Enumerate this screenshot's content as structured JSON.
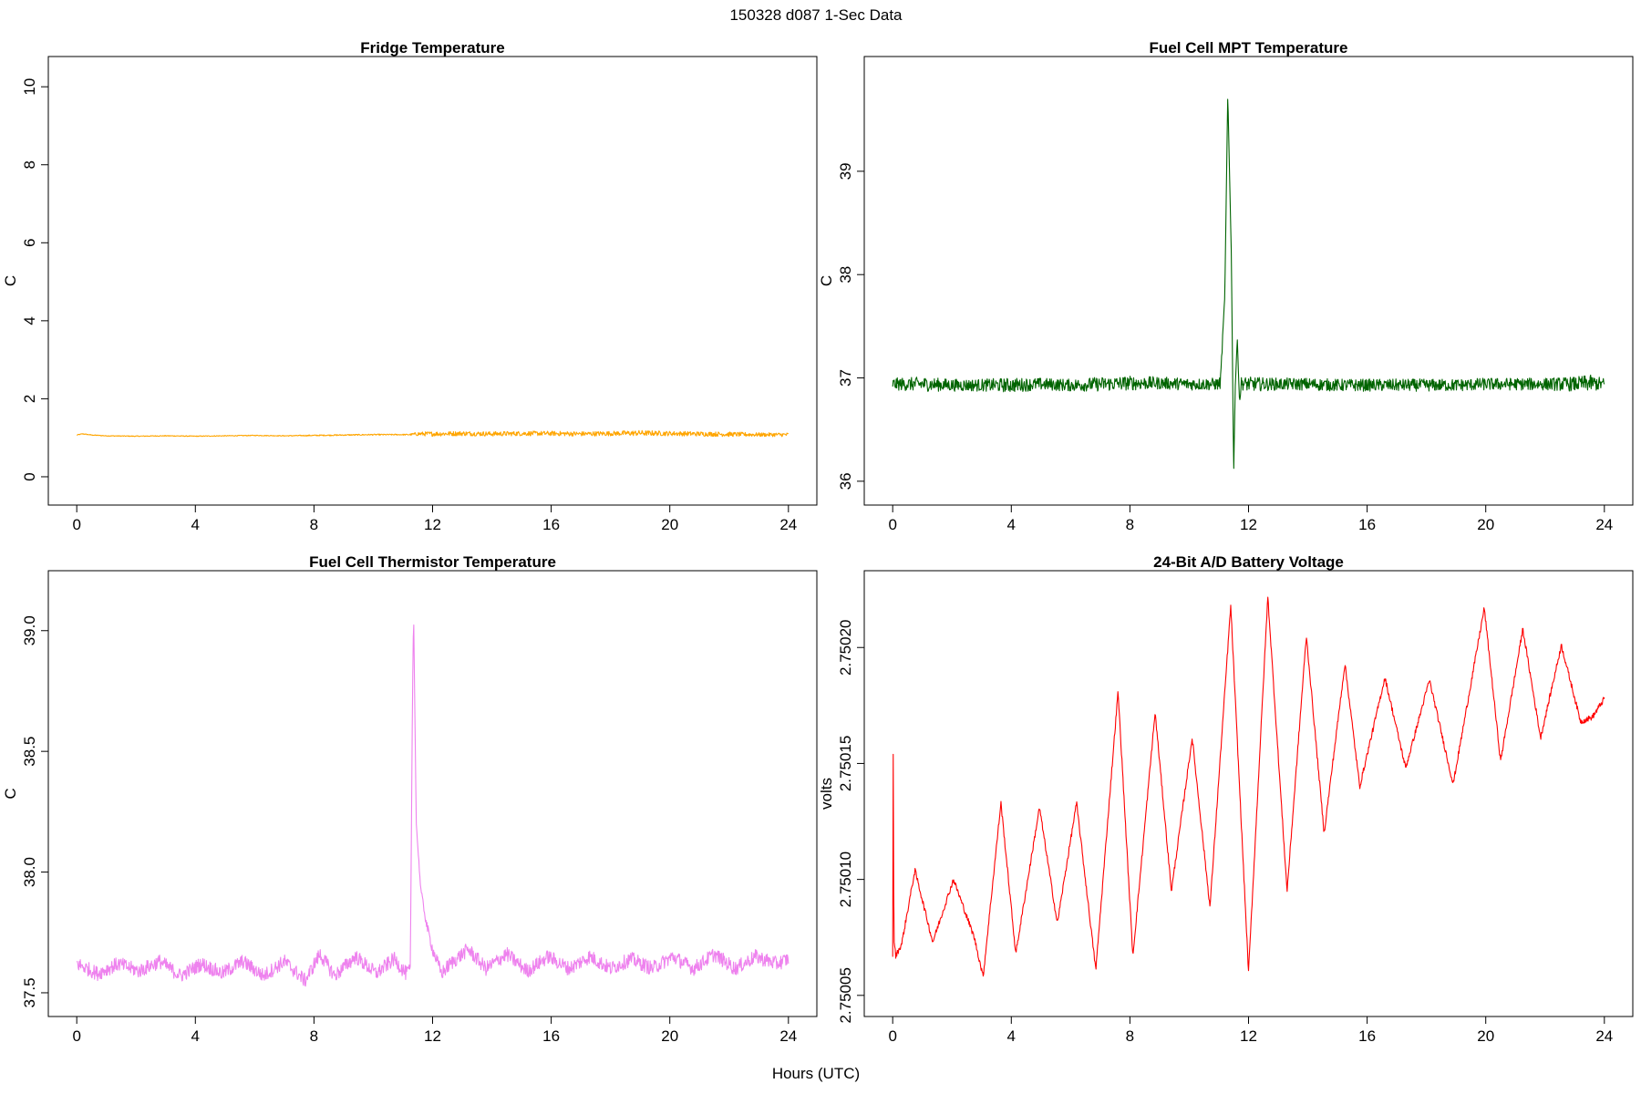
{
  "figure": {
    "title": "150328   d087   1-Sec Data",
    "xlabel": "Hours (UTC)"
  },
  "chart_data": [
    {
      "type": "line",
      "title": "Fridge Temperature",
      "ylabel": "C",
      "xlabel": "",
      "xlim": [
        0,
        24
      ],
      "ylim": [
        -0.3,
        10.35
      ],
      "xticks": [
        0,
        4,
        8,
        12,
        16,
        20,
        24
      ],
      "yticks": [
        0,
        2,
        4,
        6,
        8,
        10
      ],
      "ytick_labels": [
        "0",
        "2",
        "4",
        "6",
        "8",
        "10"
      ],
      "grid": false,
      "color": "#FFA500",
      "series": [
        {
          "x": [
            0,
            0.2,
            0.5,
            1,
            2,
            3,
            4,
            5,
            6,
            7,
            8,
            9,
            10,
            11,
            11.2,
            11.5,
            12,
            13,
            14,
            15,
            16,
            17,
            18,
            19,
            20,
            21,
            22,
            23,
            24
          ],
          "values": [
            1.07,
            1.1,
            1.07,
            1.05,
            1.04,
            1.05,
            1.04,
            1.05,
            1.06,
            1.05,
            1.06,
            1.07,
            1.08,
            1.08,
            1.08,
            1.1,
            1.1,
            1.11,
            1.1,
            1.11,
            1.11,
            1.1,
            1.11,
            1.12,
            1.11,
            1.1,
            1.09,
            1.08,
            1.08
          ],
          "noise": [
            0.01,
            0.01,
            0.01,
            0.01,
            0.01,
            0.01,
            0.01,
            0.01,
            0.01,
            0.01,
            0.015,
            0.015,
            0.015,
            0.015,
            0.015,
            0.05,
            0.06,
            0.06,
            0.06,
            0.06,
            0.06,
            0.06,
            0.06,
            0.07,
            0.06,
            0.06,
            0.06,
            0.05,
            0.05
          ]
        }
      ]
    },
    {
      "type": "line",
      "title": "Fuel Cell MPT Temperature",
      "ylabel": "C",
      "xlabel": "",
      "xlim": [
        0,
        24
      ],
      "ylim": [
        35.93,
        39.95
      ],
      "xticks": [
        0,
        4,
        8,
        12,
        16,
        20,
        24
      ],
      "yticks": [
        36,
        37,
        38,
        39
      ],
      "ytick_labels": [
        "36",
        "37",
        "38",
        "39"
      ],
      "grid": false,
      "color": "#006400",
      "series": [
        {
          "x": [
            0,
            1,
            2,
            3,
            4,
            5,
            6,
            7,
            8,
            9,
            10,
            11,
            11.05,
            11.2,
            11.3,
            11.42,
            11.5,
            11.55,
            11.62,
            11.7,
            11.75,
            11.9,
            12,
            13,
            14,
            15,
            16,
            17,
            18,
            19,
            20,
            21,
            22,
            23,
            23.5,
            24
          ],
          "values": [
            36.94,
            36.94,
            36.93,
            36.93,
            36.93,
            36.94,
            36.93,
            36.94,
            36.95,
            36.95,
            36.94,
            36.94,
            36.95,
            37.8,
            39.75,
            38.2,
            36.08,
            36.9,
            37.38,
            36.75,
            36.95,
            36.94,
            36.94,
            36.94,
            36.94,
            36.93,
            36.93,
            36.93,
            36.93,
            36.93,
            36.94,
            36.94,
            36.94,
            36.94,
            36.95,
            36.94
          ],
          "noise": [
            0.06,
            0.07,
            0.06,
            0.06,
            0.07,
            0.06,
            0.06,
            0.07,
            0.07,
            0.06,
            0.06,
            0.06,
            0.06,
            0.01,
            0.01,
            0.01,
            0.01,
            0.02,
            0.01,
            0.02,
            0.06,
            0.07,
            0.07,
            0.06,
            0.06,
            0.06,
            0.06,
            0.06,
            0.06,
            0.06,
            0.06,
            0.06,
            0.06,
            0.07,
            0.08,
            0.06
          ]
        }
      ]
    },
    {
      "type": "line",
      "title": "Fuel Cell Thermistor Temperature",
      "ylabel": "C",
      "xlabel": "",
      "xlim": [
        0,
        24
      ],
      "ylim": [
        37.47,
        39.18
      ],
      "xticks": [
        0,
        4,
        8,
        12,
        16,
        20,
        24
      ],
      "yticks": [
        37.5,
        38.0,
        38.5,
        39.0
      ],
      "ytick_labels": [
        "37.5",
        "38.0",
        "38.5",
        "39.0"
      ],
      "grid": false,
      "color": "#EE82EE",
      "series": [
        {
          "x": [
            0,
            0.7,
            1.4,
            2.1,
            2.8,
            3.5,
            4.2,
            4.9,
            5.6,
            6.3,
            7,
            7.7,
            8.2,
            8.7,
            9.4,
            10.1,
            10.7,
            11.1,
            11.25,
            11.32,
            11.36,
            11.45,
            11.6,
            11.8,
            12,
            12.3,
            12.6,
            13.2,
            13.8,
            14.5,
            15.2,
            15.9,
            16.6,
            17.3,
            18,
            18.7,
            19.4,
            20.1,
            20.8,
            21.5,
            22.2,
            22.9,
            23.6,
            24
          ],
          "values": [
            37.62,
            37.58,
            37.62,
            37.59,
            37.63,
            37.57,
            37.62,
            37.58,
            37.63,
            37.57,
            37.63,
            37.55,
            37.66,
            37.57,
            37.65,
            37.58,
            37.64,
            37.58,
            37.6,
            38.7,
            39.08,
            38.2,
            37.93,
            37.78,
            37.68,
            37.58,
            37.62,
            37.68,
            37.6,
            37.66,
            37.59,
            37.65,
            37.6,
            37.65,
            37.6,
            37.64,
            37.6,
            37.65,
            37.6,
            37.66,
            37.6,
            37.65,
            37.62,
            37.64
          ],
          "noise": [
            0.03,
            0.03,
            0.03,
            0.03,
            0.03,
            0.03,
            0.03,
            0.03,
            0.03,
            0.03,
            0.03,
            0.03,
            0.03,
            0.03,
            0.03,
            0.03,
            0.03,
            0.03,
            0.02,
            0.005,
            0.005,
            0.01,
            0.01,
            0.02,
            0.025,
            0.03,
            0.03,
            0.03,
            0.03,
            0.03,
            0.03,
            0.03,
            0.03,
            0.03,
            0.03,
            0.03,
            0.03,
            0.03,
            0.03,
            0.03,
            0.03,
            0.03,
            0.03,
            0.03
          ]
        }
      ]
    },
    {
      "type": "line",
      "title": "24-Bit A/D Battery Voltage",
      "ylabel": "volts",
      "xlabel": "",
      "xlim": [
        0,
        24
      ],
      "ylim": [
        2.750048,
        2.750226
      ],
      "xticks": [
        0,
        4,
        8,
        12,
        16,
        20,
        24
      ],
      "yticks": [
        2.75005,
        2.7501,
        2.75015,
        2.7502
      ],
      "ytick_labels": [
        "2.75005",
        "2.75010",
        "2.75015",
        "2.75020"
      ],
      "grid": false,
      "color": "#FF0000",
      "series": [
        {
          "x": [
            0,
            0.01,
            0.04,
            0.1,
            0.3,
            0.75,
            1.35,
            2.05,
            2.75,
            3.05,
            3.65,
            4.15,
            4.95,
            5.55,
            6.2,
            6.85,
            7.6,
            8.1,
            8.85,
            9.4,
            10.1,
            10.7,
            11.4,
            12,
            12.65,
            13.3,
            13.95,
            14.55,
            15.25,
            15.75,
            16.6,
            17.3,
            18.1,
            18.9,
            19.95,
            20.5,
            21.25,
            21.85,
            22.55,
            23.2,
            23.6,
            24
          ],
          "values": [
            2.750067,
            2.750178,
            2.750075,
            2.750067,
            2.750072,
            2.750104,
            2.750073,
            2.7501,
            2.750075,
            2.750058,
            2.750133,
            2.750068,
            2.750131,
            2.750081,
            2.750133,
            2.750061,
            2.750181,
            2.750067,
            2.750172,
            2.750095,
            2.750161,
            2.750088,
            2.750218,
            2.75006,
            2.750222,
            2.750095,
            2.750205,
            2.75012,
            2.750193,
            2.75014,
            2.750187,
            2.750148,
            2.750186,
            2.750141,
            2.750217,
            2.750151,
            2.750208,
            2.750161,
            2.750201,
            2.750168,
            2.75017,
            2.750178
          ],
          "noise": [
            5e-07,
            5e-07,
            1e-06,
            1.2e-06,
            1.2e-06,
            1.2e-06,
            1.2e-06,
            1.2e-06,
            1.2e-06,
            1.2e-06,
            1.2e-06,
            1.2e-06,
            1.2e-06,
            1.2e-06,
            1.2e-06,
            1.2e-06,
            1.2e-06,
            1.2e-06,
            1.2e-06,
            1.2e-06,
            1.2e-06,
            1.2e-06,
            1.2e-06,
            1.2e-06,
            1.2e-06,
            1.2e-06,
            1.2e-06,
            1.2e-06,
            1.2e-06,
            1.2e-06,
            1.2e-06,
            1.2e-06,
            1.2e-06,
            1.2e-06,
            1.2e-06,
            1.2e-06,
            1.2e-06,
            1.2e-06,
            1.2e-06,
            1.2e-06,
            1.2e-06,
            1.2e-06
          ]
        }
      ]
    }
  ]
}
